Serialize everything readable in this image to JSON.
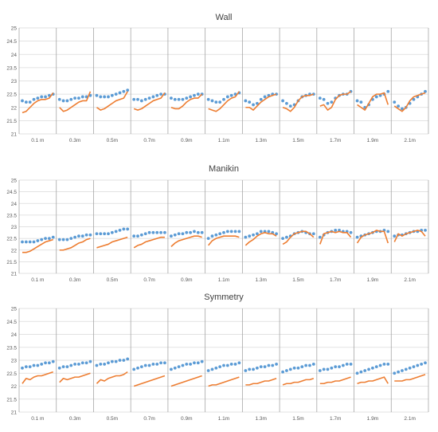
{
  "colors": {
    "dots": "#5b9bd5",
    "line": "#ed7d31",
    "grid": "#d9d9d9",
    "divider": "#a6a6a6",
    "axis_text": "#595959",
    "title_text": "#404040"
  },
  "chart_data": [
    {
      "type": "line",
      "title": "Wall",
      "ylim": [
        21,
        25
      ],
      "yticks": [
        21,
        21.5,
        22,
        22.5,
        23,
        23.5,
        24,
        24.5,
        25
      ],
      "categories": [
        "0.1 m",
        "0.3m",
        "0.5m",
        "0.7m",
        "0.9m",
        "1.1m",
        "1.3m",
        "1.5m",
        "1.7m",
        "1.9m",
        "2.1m"
      ],
      "grid": true,
      "legend": "none",
      "series": [
        {
          "style": "scatter",
          "values": [
            [
              22.25,
              22.2,
              22.2,
              22.3,
              22.35,
              22.4,
              22.4,
              22.45,
              22.5
            ],
            [
              22.3,
              22.25,
              22.25,
              22.3,
              22.35,
              22.35,
              22.4,
              22.4,
              22.45
            ],
            [
              22.45,
              22.4,
              22.4,
              22.4,
              22.45,
              22.5,
              22.55,
              22.6,
              22.65
            ],
            [
              22.3,
              22.3,
              22.25,
              22.3,
              22.35,
              22.4,
              22.45,
              22.5,
              22.5
            ],
            [
              22.35,
              22.3,
              22.3,
              22.3,
              22.35,
              22.4,
              22.45,
              22.5,
              22.5
            ],
            [
              22.3,
              22.25,
              22.2,
              22.2,
              22.3,
              22.4,
              22.45,
              22.5,
              22.55
            ],
            [
              22.25,
              22.2,
              22.1,
              22.15,
              22.3,
              22.4,
              22.45,
              22.5,
              22.5
            ],
            [
              22.25,
              22.15,
              22.05,
              22.1,
              22.25,
              22.4,
              22.45,
              22.5,
              22.5
            ],
            [
              22.35,
              22.3,
              22.15,
              22.2,
              22.35,
              22.45,
              22.5,
              22.5,
              22.6
            ],
            [
              22.25,
              22.2,
              22.0,
              22.1,
              22.3,
              22.4,
              22.45,
              22.5,
              22.6
            ],
            [
              22.2,
              22.05,
              21.95,
              22.0,
              22.15,
              22.3,
              22.4,
              22.5,
              22.6
            ]
          ]
        },
        {
          "style": "line",
          "values": [
            [
              21.8,
              21.85,
              22.0,
              22.15,
              22.25,
              22.3,
              22.3,
              22.35,
              22.55
            ],
            [
              22.0,
              21.85,
              21.9,
              22.0,
              22.1,
              22.2,
              22.25,
              22.25,
              22.6
            ],
            [
              22.0,
              21.9,
              21.95,
              22.05,
              22.15,
              22.25,
              22.3,
              22.35,
              22.6
            ],
            [
              21.95,
              21.9,
              21.95,
              22.05,
              22.15,
              22.25,
              22.3,
              22.35,
              22.55
            ],
            [
              22.0,
              21.95,
              21.95,
              22.05,
              22.2,
              22.3,
              22.35,
              22.35,
              22.5
            ],
            [
              21.95,
              21.9,
              21.85,
              21.95,
              22.1,
              22.25,
              22.35,
              22.4,
              22.6
            ],
            [
              22.0,
              22.0,
              21.9,
              22.05,
              22.2,
              22.3,
              22.4,
              22.45,
              22.5
            ],
            [
              22.0,
              21.95,
              21.85,
              22.0,
              22.25,
              22.4,
              22.45,
              22.45,
              22.5
            ],
            [
              22.05,
              22.1,
              21.9,
              22.0,
              22.3,
              22.45,
              22.5,
              22.5,
              22.6
            ],
            [
              22.1,
              22.0,
              21.9,
              22.15,
              22.4,
              22.5,
              22.5,
              22.55,
              22.1
            ],
            [
              22.05,
              21.95,
              21.85,
              22.0,
              22.25,
              22.4,
              22.45,
              22.5,
              22.55
            ]
          ]
        }
      ]
    },
    {
      "type": "line",
      "title": "Manikin",
      "ylim": [
        21,
        25
      ],
      "yticks": [
        21,
        21.5,
        22,
        22.5,
        23,
        23.5,
        24,
        24.5,
        25
      ],
      "categories": [
        "0.1 m",
        "0.3m",
        "0.5m",
        "0.7m",
        "0.9m",
        "1.1m",
        "1.3m",
        "1.5m",
        "1.7m",
        "1.9m",
        "2.1m"
      ],
      "grid": true,
      "legend": "none",
      "series": [
        {
          "style": "scatter",
          "values": [
            [
              22.35,
              22.35,
              22.35,
              22.35,
              22.4,
              22.45,
              22.5,
              22.5,
              22.55
            ],
            [
              22.45,
              22.45,
              22.45,
              22.5,
              22.55,
              22.6,
              22.6,
              22.65,
              22.65
            ],
            [
              22.7,
              22.7,
              22.7,
              22.7,
              22.75,
              22.8,
              22.85,
              22.9,
              22.9
            ],
            [
              22.6,
              22.6,
              22.65,
              22.7,
              22.75,
              22.75,
              22.75,
              22.75,
              22.75
            ],
            [
              22.6,
              22.65,
              22.7,
              22.7,
              22.75,
              22.75,
              22.8,
              22.75,
              22.75
            ],
            [
              22.5,
              22.6,
              22.65,
              22.7,
              22.75,
              22.8,
              22.8,
              22.8,
              22.8
            ],
            [
              22.55,
              22.6,
              22.65,
              22.7,
              22.8,
              22.8,
              22.8,
              22.75,
              22.7
            ],
            [
              22.5,
              22.55,
              22.6,
              22.7,
              22.75,
              22.8,
              22.75,
              22.7,
              22.7
            ],
            [
              22.55,
              22.65,
              22.75,
              22.8,
              22.85,
              22.85,
              22.8,
              22.8,
              22.75
            ],
            [
              22.55,
              22.6,
              22.65,
              22.7,
              22.75,
              22.8,
              22.8,
              22.85,
              22.8
            ],
            [
              22.6,
              22.65,
              22.65,
              22.7,
              22.75,
              22.8,
              22.8,
              22.85,
              22.85
            ]
          ]
        },
        {
          "style": "line",
          "values": [
            [
              21.9,
              21.9,
              21.95,
              22.05,
              22.15,
              22.25,
              22.35,
              22.4,
              22.45
            ],
            [
              22.0,
              22.0,
              22.05,
              22.1,
              22.2,
              22.3,
              22.35,
              22.45,
              22.5
            ],
            [
              22.1,
              22.15,
              22.2,
              22.25,
              22.35,
              22.4,
              22.45,
              22.5,
              22.55
            ],
            [
              22.1,
              22.2,
              22.25,
              22.35,
              22.4,
              22.45,
              22.5,
              22.55,
              22.55
            ],
            [
              22.15,
              22.3,
              22.4,
              22.45,
              22.5,
              22.55,
              22.6,
              22.6,
              22.55
            ],
            [
              22.2,
              22.4,
              22.5,
              22.55,
              22.6,
              22.6,
              22.6,
              22.6,
              22.55
            ],
            [
              22.2,
              22.35,
              22.45,
              22.6,
              22.7,
              22.75,
              22.7,
              22.7,
              22.6
            ],
            [
              22.25,
              22.35,
              22.55,
              22.7,
              22.75,
              22.8,
              22.8,
              22.7,
              22.55
            ],
            [
              22.25,
              22.7,
              22.75,
              22.8,
              22.75,
              22.8,
              22.75,
              22.75,
              22.55
            ],
            [
              22.3,
              22.55,
              22.65,
              22.7,
              22.75,
              22.85,
              22.8,
              22.8,
              22.3
            ],
            [
              22.35,
              22.7,
              22.6,
              22.7,
              22.75,
              22.8,
              22.85,
              22.8,
              22.6
            ]
          ]
        }
      ]
    },
    {
      "type": "line",
      "title": "Symmetry",
      "ylim": [
        21,
        25
      ],
      "yticks": [
        21,
        21.5,
        22,
        22.5,
        23,
        23.5,
        24,
        24.5,
        25
      ],
      "categories": [
        "0.1 m",
        "0.3m",
        "0.5m",
        "0.7m",
        "0.9m",
        "1.1m",
        "1.3m",
        "1.5m",
        "1.7m",
        "1.9m",
        "2.1m"
      ],
      "grid": true,
      "legend": "none",
      "series": [
        {
          "style": "scatter",
          "values": [
            [
              22.7,
              22.75,
              22.75,
              22.8,
              22.8,
              22.85,
              22.9,
              22.9,
              22.95
            ],
            [
              22.7,
              22.75,
              22.75,
              22.8,
              22.85,
              22.85,
              22.9,
              22.9,
              22.95
            ],
            [
              22.8,
              22.85,
              22.85,
              22.9,
              22.95,
              22.95,
              23.0,
              23.0,
              23.05
            ],
            [
              22.65,
              22.7,
              22.75,
              22.8,
              22.8,
              22.85,
              22.85,
              22.9,
              22.9
            ],
            [
              22.65,
              22.7,
              22.75,
              22.8,
              22.85,
              22.85,
              22.9,
              22.9,
              22.95
            ],
            [
              22.6,
              22.65,
              22.7,
              22.75,
              22.8,
              22.8,
              22.85,
              22.85,
              22.9
            ],
            [
              22.6,
              22.65,
              22.65,
              22.7,
              22.75,
              22.75,
              22.8,
              22.8,
              22.85
            ],
            [
              22.55,
              22.6,
              22.65,
              22.7,
              22.7,
              22.75,
              22.8,
              22.8,
              22.85
            ],
            [
              22.6,
              22.65,
              22.65,
              22.7,
              22.75,
              22.75,
              22.8,
              22.85,
              22.85
            ],
            [
              22.5,
              22.55,
              22.6,
              22.65,
              22.7,
              22.75,
              22.8,
              22.85,
              22.85
            ],
            [
              22.5,
              22.55,
              22.6,
              22.65,
              22.7,
              22.75,
              22.8,
              22.85,
              22.9
            ]
          ]
        },
        {
          "style": "line",
          "values": [
            [
              22.1,
              22.3,
              22.25,
              22.35,
              22.4,
              22.4,
              22.45,
              22.5,
              22.55
            ],
            [
              22.15,
              22.3,
              22.25,
              22.3,
              22.35,
              22.35,
              22.4,
              22.45,
              22.5
            ],
            [
              22.1,
              22.25,
              22.2,
              22.3,
              22.35,
              22.4,
              22.4,
              22.45,
              22.55
            ],
            [
              22.0,
              22.05,
              22.1,
              22.15,
              22.2,
              22.25,
              22.3,
              22.35,
              22.4
            ],
            [
              22.0,
              22.05,
              22.1,
              22.15,
              22.2,
              22.25,
              22.3,
              22.35,
              22.4
            ],
            [
              22.0,
              22.05,
              22.05,
              22.1,
              22.15,
              22.2,
              22.25,
              22.3,
              22.35
            ],
            [
              22.05,
              22.05,
              22.1,
              22.1,
              22.15,
              22.2,
              22.2,
              22.25,
              22.3
            ],
            [
              22.05,
              22.1,
              22.1,
              22.15,
              22.15,
              22.2,
              22.25,
              22.25,
              22.3
            ],
            [
              22.1,
              22.1,
              22.15,
              22.15,
              22.2,
              22.2,
              22.25,
              22.3,
              22.35
            ],
            [
              22.1,
              22.15,
              22.15,
              22.2,
              22.2,
              22.25,
              22.3,
              22.35,
              22.1
            ],
            [
              22.2,
              22.2,
              22.2,
              22.25,
              22.25,
              22.3,
              22.35,
              22.4,
              22.45
            ]
          ]
        }
      ]
    }
  ]
}
